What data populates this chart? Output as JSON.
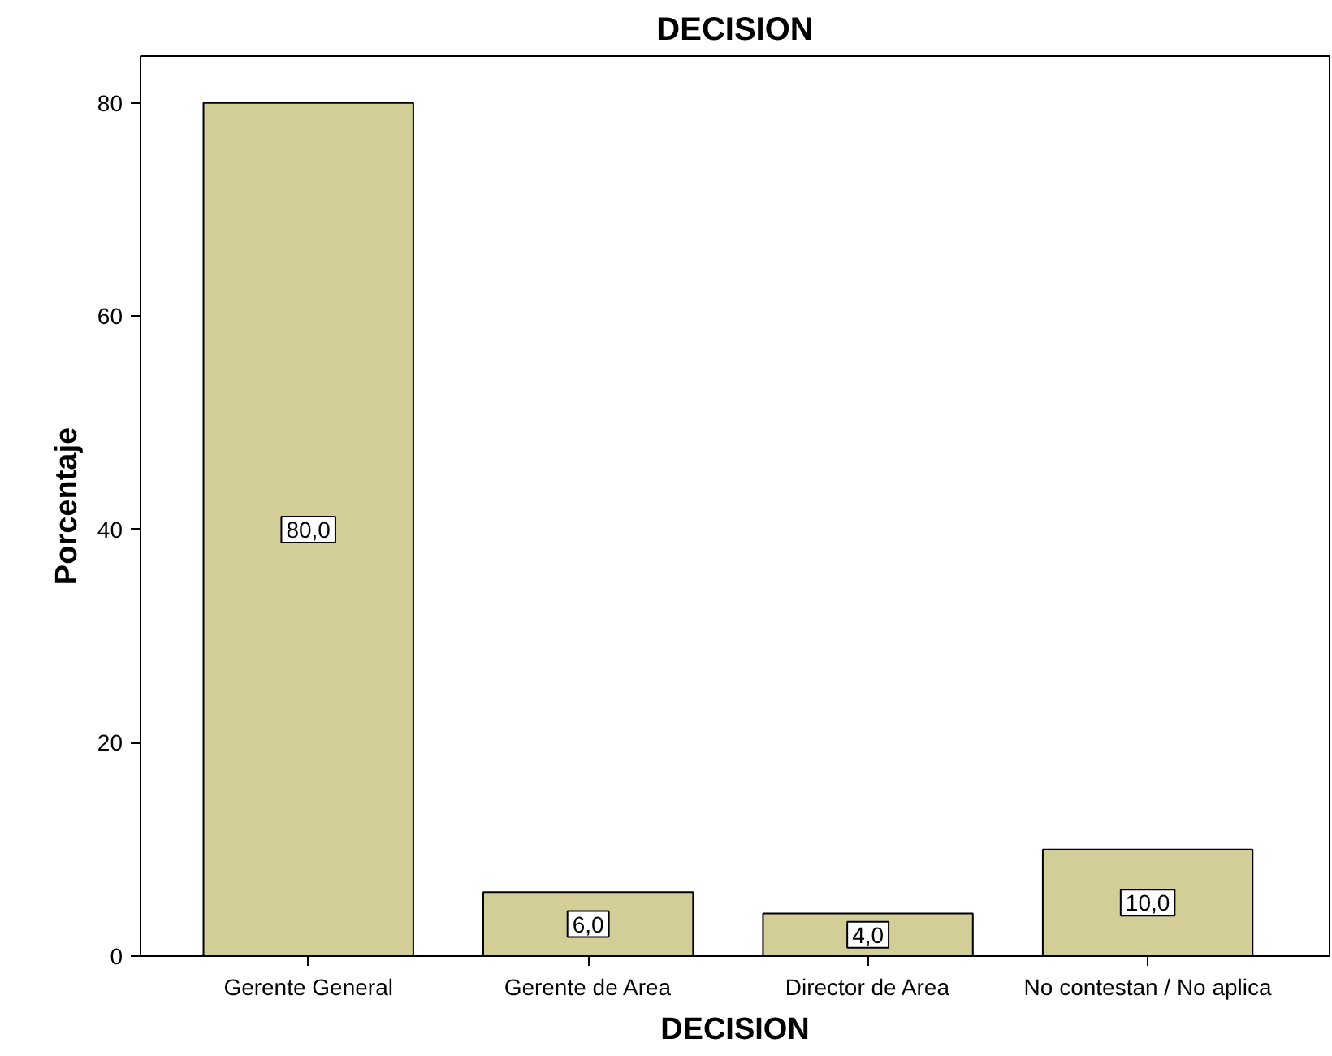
{
  "chart_data": {
    "type": "bar",
    "title": "DECISION",
    "xlabel": "DECISION",
    "ylabel": "Porcentaje",
    "categories": [
      "Gerente General",
      "Gerente de Area",
      "Director de Area",
      "No contestan / No aplica"
    ],
    "values": [
      80,
      6,
      4,
      10
    ],
    "value_labels": [
      "80,0",
      "6,0",
      "4,0",
      "10,0"
    ],
    "color": "#d3ce97",
    "ylim": [
      0,
      84.4
    ],
    "yticks": [
      0,
      20,
      40,
      60,
      80
    ],
    "grid": false
  }
}
